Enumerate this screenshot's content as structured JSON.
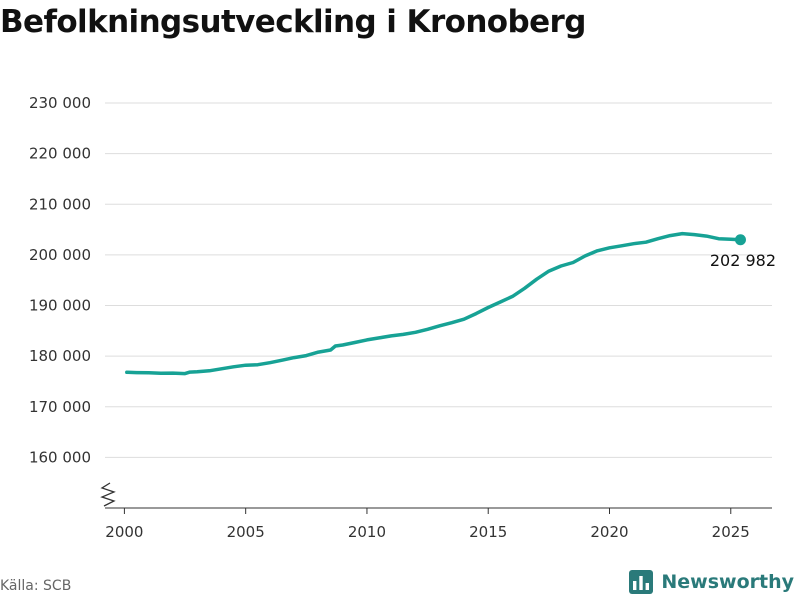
{
  "title": "Befolkningsutveckling i Kronoberg",
  "source": "Källa: SCB",
  "brand": {
    "name": "Newsworthy",
    "icon": "bar-chart-icon"
  },
  "colors": {
    "line": "#17a295",
    "grid": "#dddddd",
    "axis": "#333333",
    "brand": "#2a7a7a"
  },
  "chart_data": {
    "type": "line",
    "title": "Befolkningsutveckling i Kronoberg",
    "xlabel": "",
    "ylabel": "",
    "xlim": [
      1999.2,
      2026.7
    ],
    "ylim": [
      150000,
      230000
    ],
    "y_axis_break": true,
    "grid": "horizontal",
    "xticks": [
      2000,
      2005,
      2010,
      2015,
      2020,
      2025
    ],
    "xtick_labels": [
      "2000",
      "2005",
      "2010",
      "2015",
      "2020",
      "2025"
    ],
    "yticks": [
      160000,
      170000,
      180000,
      190000,
      200000,
      210000,
      220000,
      230000
    ],
    "ytick_labels": [
      "160 000",
      "170 000",
      "180 000",
      "190 000",
      "200 000",
      "210 000",
      "220 000",
      "230 000"
    ],
    "series": [
      {
        "values": [
          [
            2000.1,
            176800
          ],
          [
            2000.5,
            176750
          ],
          [
            2001.0,
            176700
          ],
          [
            2001.5,
            176620
          ],
          [
            2002.0,
            176650
          ],
          [
            2002.5,
            176550
          ],
          [
            2002.7,
            176850
          ],
          [
            2003.0,
            176900
          ],
          [
            2003.5,
            177100
          ],
          [
            2004.0,
            177500
          ],
          [
            2004.5,
            177900
          ],
          [
            2005.0,
            178200
          ],
          [
            2005.5,
            178300
          ],
          [
            2006.0,
            178700
          ],
          [
            2006.5,
            179200
          ],
          [
            2007.0,
            179700
          ],
          [
            2007.5,
            180100
          ],
          [
            2008.0,
            180800
          ],
          [
            2008.5,
            181200
          ],
          [
            2008.7,
            182000
          ],
          [
            2009.0,
            182200
          ],
          [
            2009.5,
            182700
          ],
          [
            2010.0,
            183200
          ],
          [
            2010.5,
            183600
          ],
          [
            2011.0,
            184000
          ],
          [
            2011.5,
            184300
          ],
          [
            2012.0,
            184700
          ],
          [
            2012.5,
            185300
          ],
          [
            2013.0,
            186000
          ],
          [
            2013.5,
            186600
          ],
          [
            2014.0,
            187300
          ],
          [
            2014.5,
            188400
          ],
          [
            2015.0,
            189600
          ],
          [
            2015.5,
            190700
          ],
          [
            2016.0,
            191800
          ],
          [
            2016.5,
            193400
          ],
          [
            2017.0,
            195200
          ],
          [
            2017.5,
            196800
          ],
          [
            2018.0,
            197800
          ],
          [
            2018.5,
            198500
          ],
          [
            2019.0,
            199800
          ],
          [
            2019.5,
            200800
          ],
          [
            2020.0,
            201400
          ],
          [
            2020.5,
            201800
          ],
          [
            2021.0,
            202200
          ],
          [
            2021.5,
            202500
          ],
          [
            2022.0,
            203200
          ],
          [
            2022.5,
            203800
          ],
          [
            2023.0,
            204200
          ],
          [
            2023.5,
            204000
          ],
          [
            2024.0,
            203700
          ],
          [
            2024.5,
            203200
          ],
          [
            2025.0,
            203100
          ],
          [
            2025.4,
            202982
          ]
        ]
      }
    ],
    "end_point": {
      "x": 2025.4,
      "y": 202982,
      "label": "202 982"
    }
  }
}
